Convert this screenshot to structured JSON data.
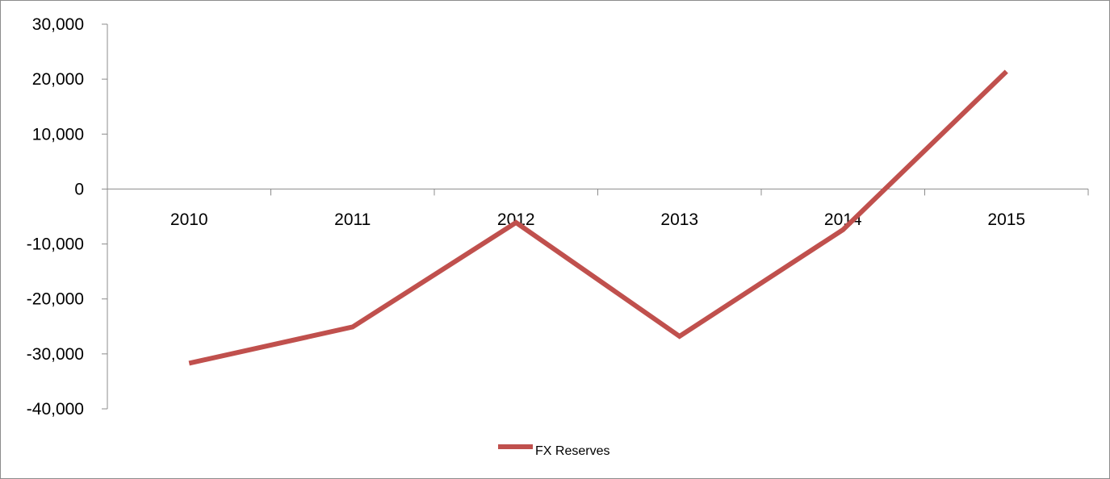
{
  "chart_data": {
    "type": "line",
    "title": "",
    "xlabel": "",
    "ylabel": "",
    "categories": [
      "2010",
      "2011",
      "2012",
      "2013",
      "2014",
      "2015"
    ],
    "series": [
      {
        "name": "FX Reserves",
        "values": [
          -31700,
          -25100,
          -6100,
          -26800,
          -7400,
          21400
        ],
        "color": "#c0504d"
      }
    ],
    "ylim": [
      -40000,
      30000
    ],
    "yticks": [
      30000,
      20000,
      10000,
      0,
      -10000,
      -20000,
      -30000,
      -40000
    ],
    "ytick_labels": [
      "30,000",
      "20,000",
      "10,000",
      "0",
      "-10,000",
      "-20,000",
      "-30,000",
      "-40,000"
    ],
    "grid": false,
    "legend_position": "bottom"
  }
}
